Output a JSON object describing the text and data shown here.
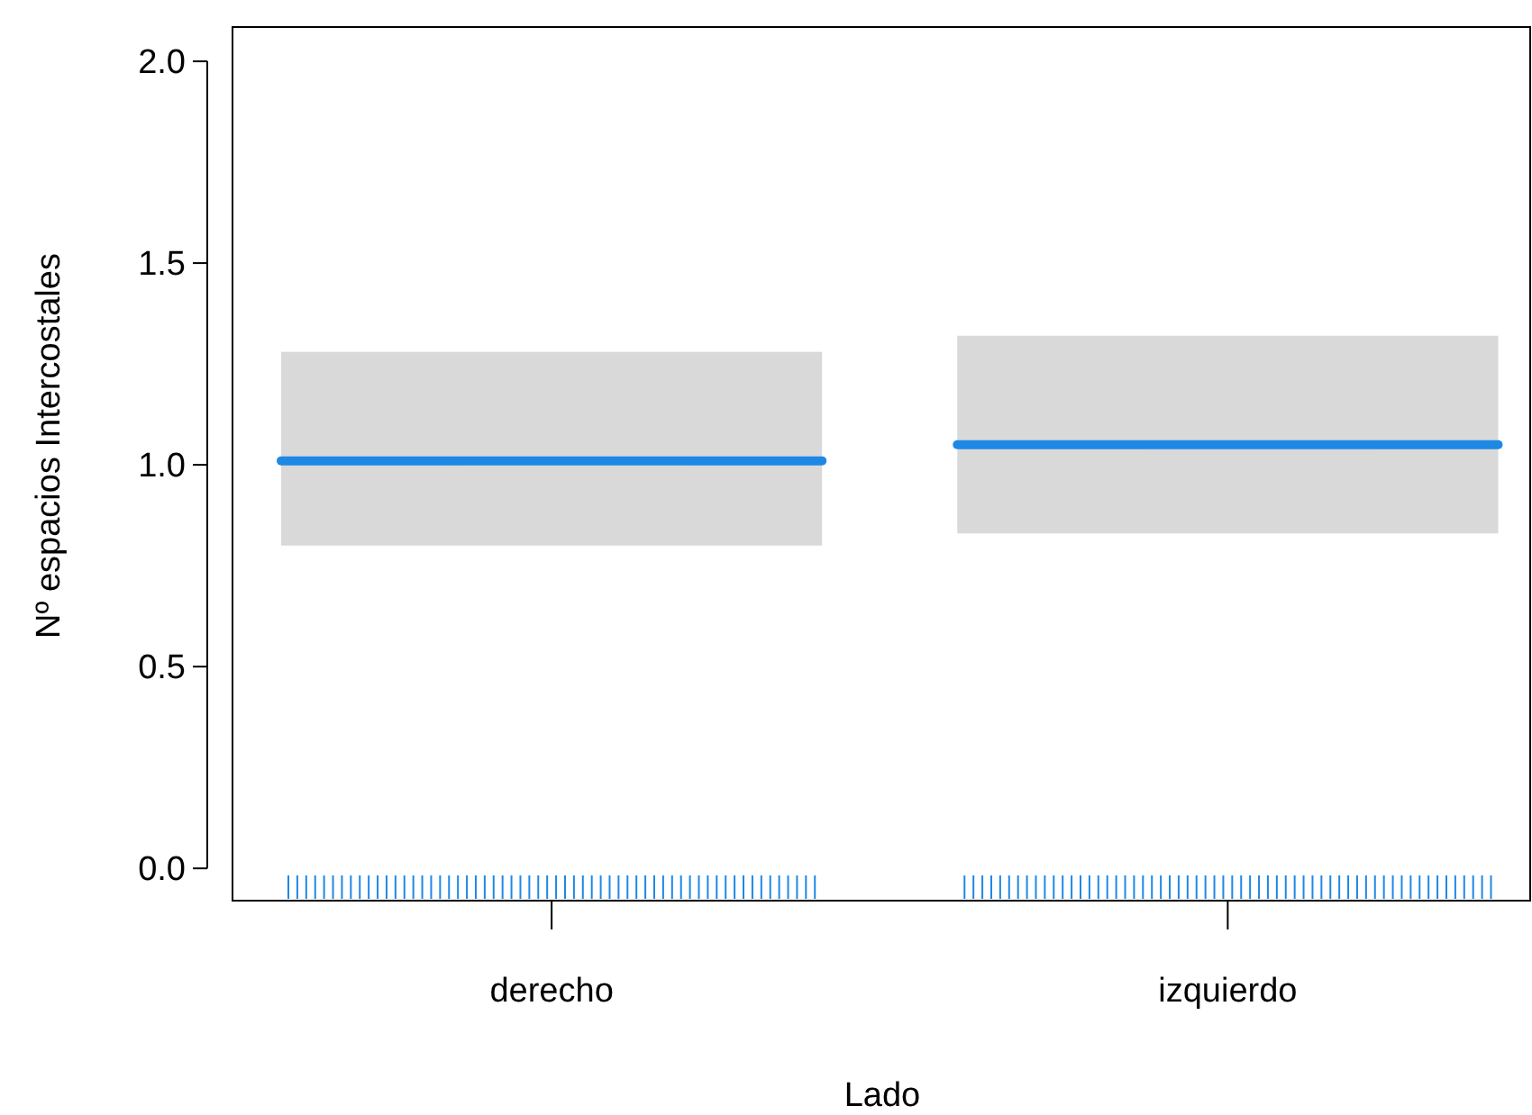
{
  "chart_data": {
    "type": "box",
    "xlabel": "Lado",
    "ylabel": "Nº espacios Intercostales",
    "categories": [
      "derecho",
      "izquierdo"
    ],
    "series": [
      {
        "color": "#d9d9d9",
        "boxes": [
          {
            "low": 0.8,
            "q1": 0.8,
            "median": 1.01,
            "q3": 1.28,
            "high": 1.28
          },
          {
            "low": 0.83,
            "q1": 0.83,
            "median": 1.05,
            "q3": 1.32,
            "high": 1.32
          }
        ]
      }
    ],
    "ylim": [
      -0.08,
      2.085
    ],
    "yticks": [
      {
        "value": 0,
        "label": "0.0"
      },
      {
        "value": 0.5,
        "label": "0.5"
      },
      {
        "value": 1,
        "label": "1.0"
      },
      {
        "value": 1.5,
        "label": "1.5"
      },
      {
        "value": 2,
        "label": "2.0"
      }
    ],
    "grid": false
  }
}
